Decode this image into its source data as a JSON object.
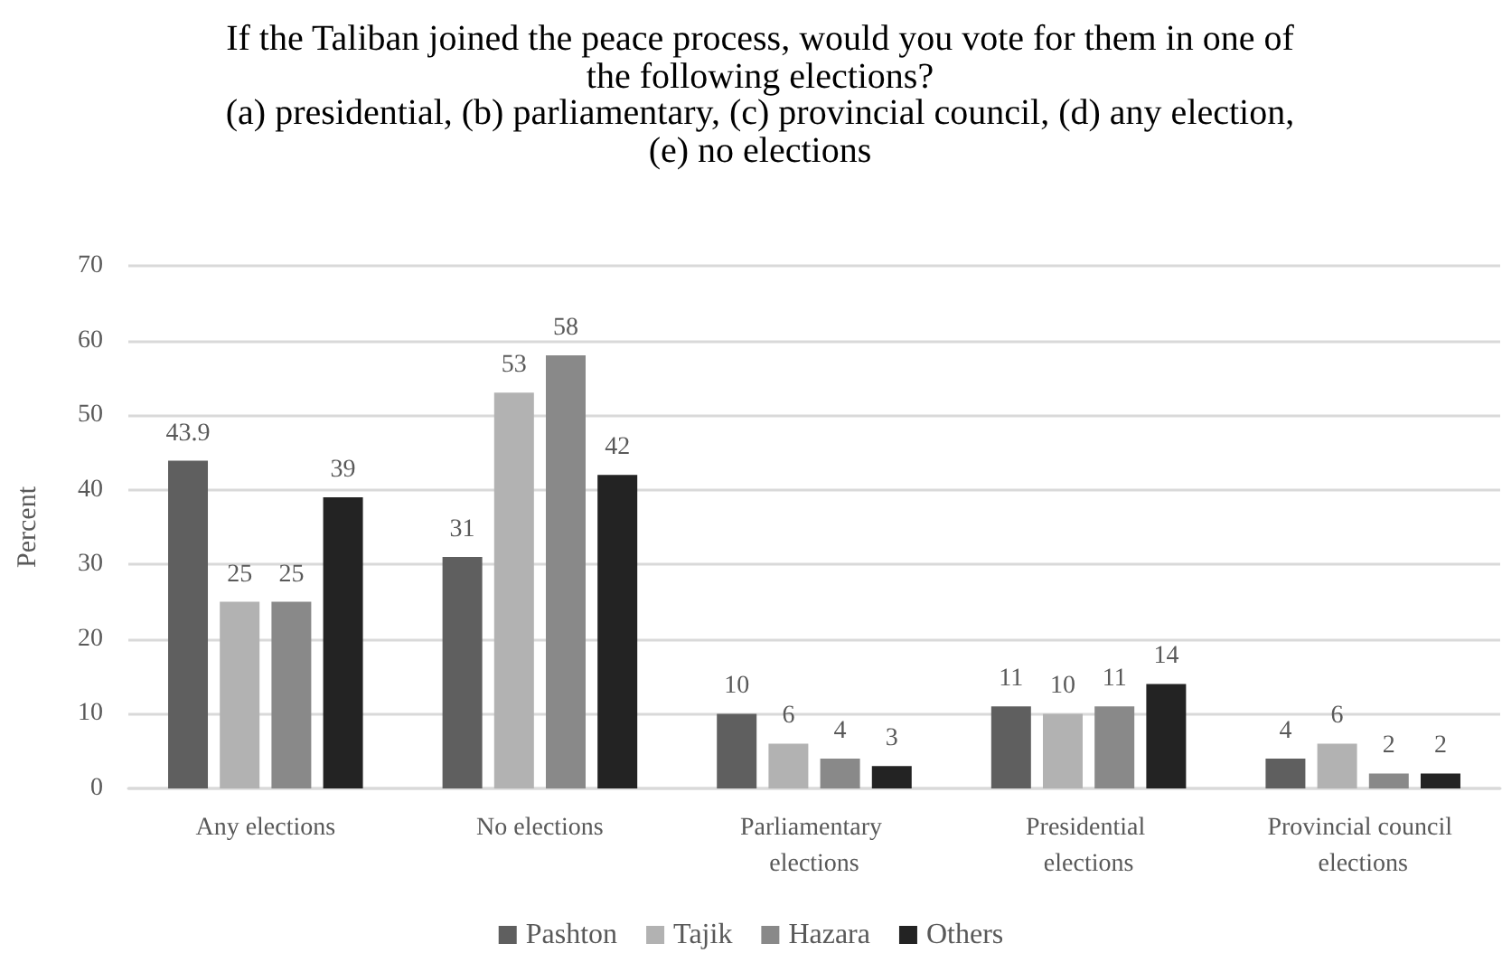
{
  "chart_data": {
    "type": "bar",
    "title": "If the Taliban joined the peace process, would you vote for them in one of the following elections?",
    "subtitle": "(a) presidential, (b) parliamentary, (c) provincial council, (d) any election, (e) no elections",
    "ylabel": "Percent",
    "categories": [
      "Any elections",
      "No elections",
      "Parliamentary elections",
      "Presidential elections",
      "Provincial council elections"
    ],
    "series": [
      {
        "name": "Pashton",
        "color": "#5f5f5f",
        "values": [
          43.9,
          31,
          10,
          11,
          4
        ]
      },
      {
        "name": "Tajik",
        "color": "#b2b2b2",
        "values": [
          25,
          53,
          6,
          10,
          6
        ]
      },
      {
        "name": "Hazara",
        "color": "#898989",
        "values": [
          25,
          58,
          4,
          11,
          2
        ]
      },
      {
        "name": "Others",
        "color": "#232323",
        "values": [
          39,
          42,
          3,
          14,
          2
        ]
      }
    ],
    "ylim": [
      0,
      70
    ],
    "yticks": [
      0,
      10,
      20,
      30,
      40,
      50,
      60,
      70
    ],
    "grid": "y",
    "legend": "bottom",
    "data_labels": true
  }
}
